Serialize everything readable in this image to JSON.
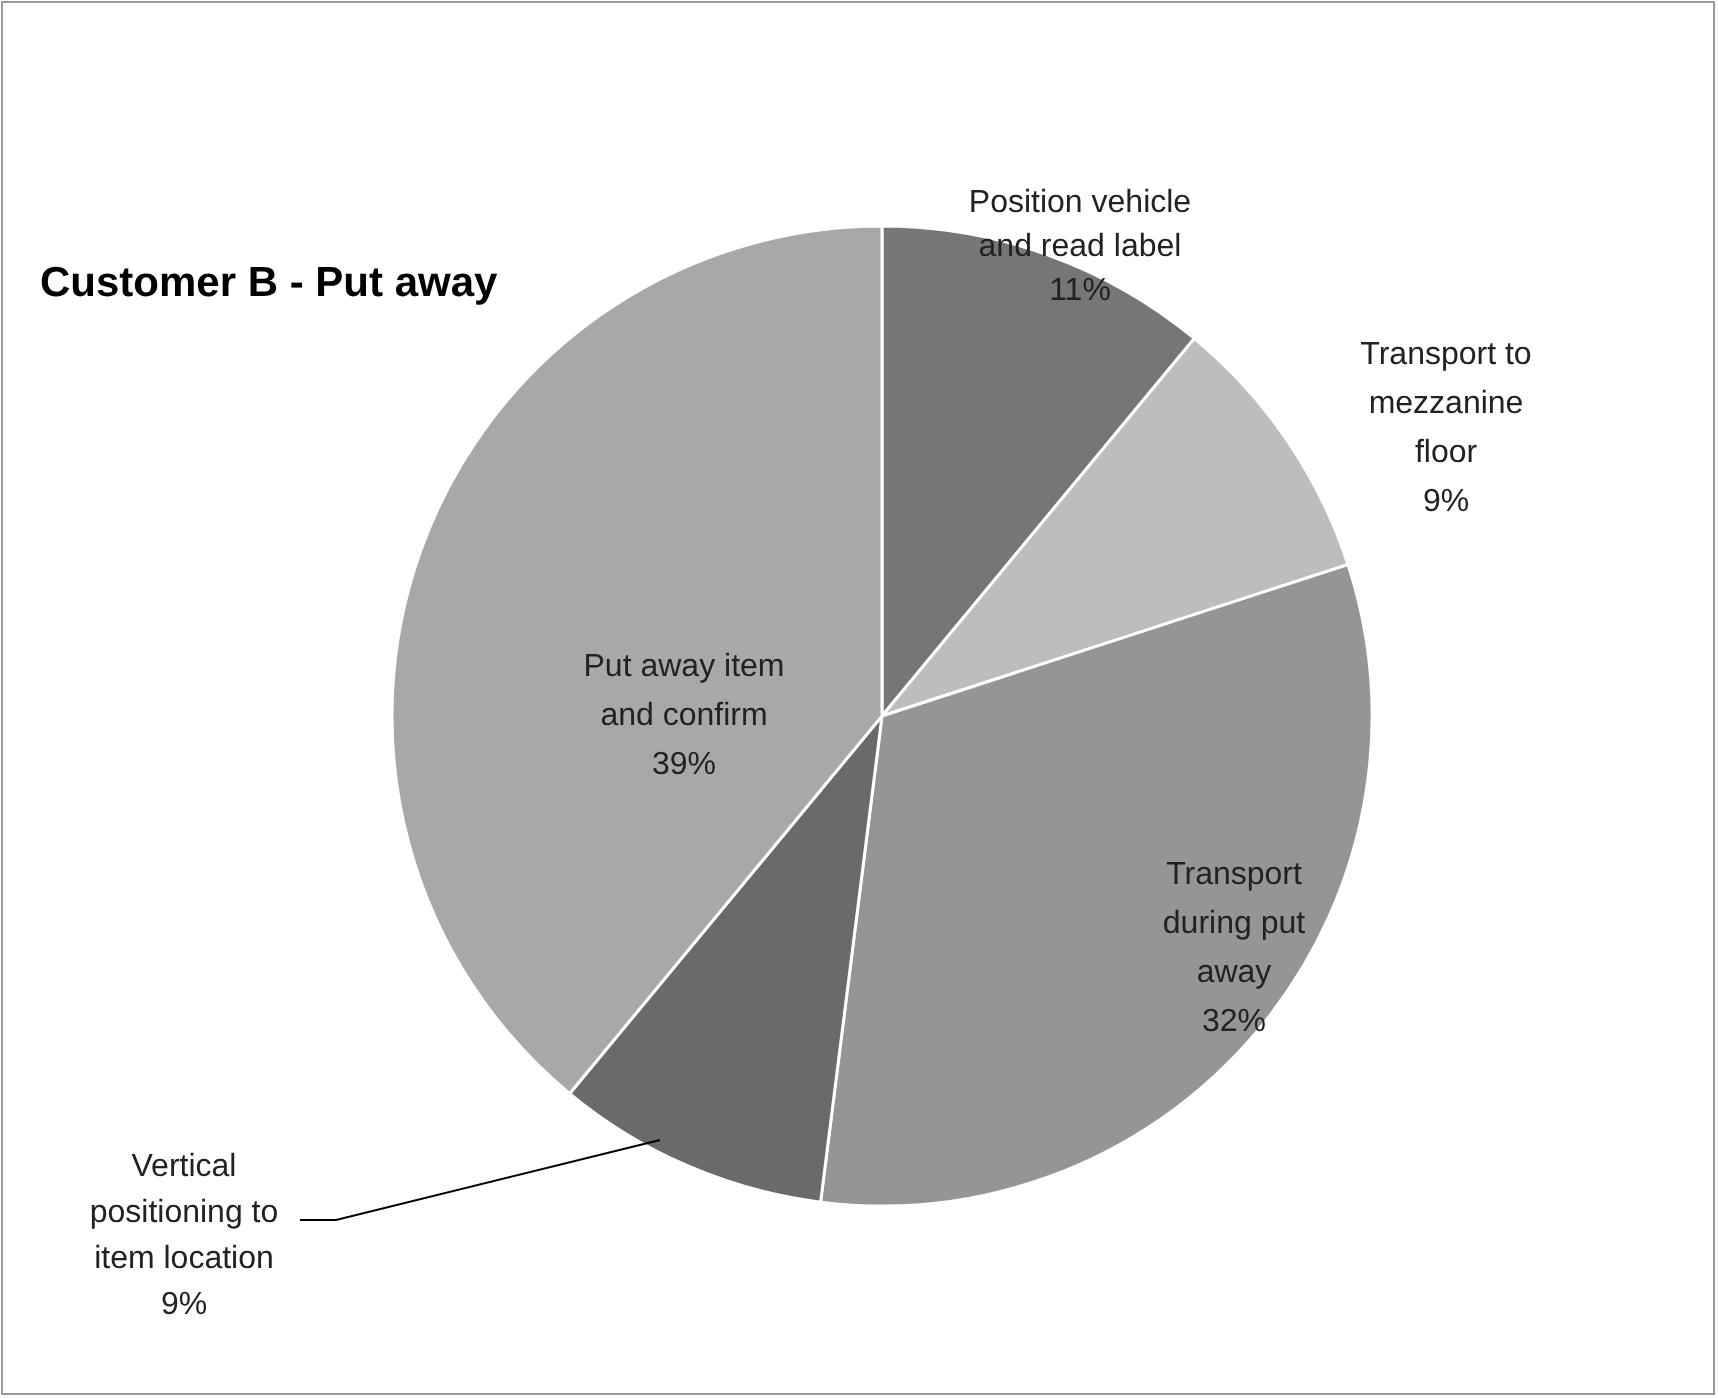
{
  "chart_data": {
    "type": "pie",
    "title": "Customer B - Put away",
    "categories": [
      "Position vehicle and read label",
      "Transport to mezzanine floor",
      "Transport during put away",
      "Vertical positioning to item location",
      "Put away item and confirm"
    ],
    "values": [
      11,
      9,
      32,
      9,
      39
    ],
    "value_labels": [
      "11%",
      "9%",
      "32%",
      "9%",
      "39%"
    ],
    "colors": [
      "#767676",
      "#bdbdbd",
      "#959595",
      "#6a6a6a",
      "#a8a8a8"
    ],
    "legend": false
  }
}
